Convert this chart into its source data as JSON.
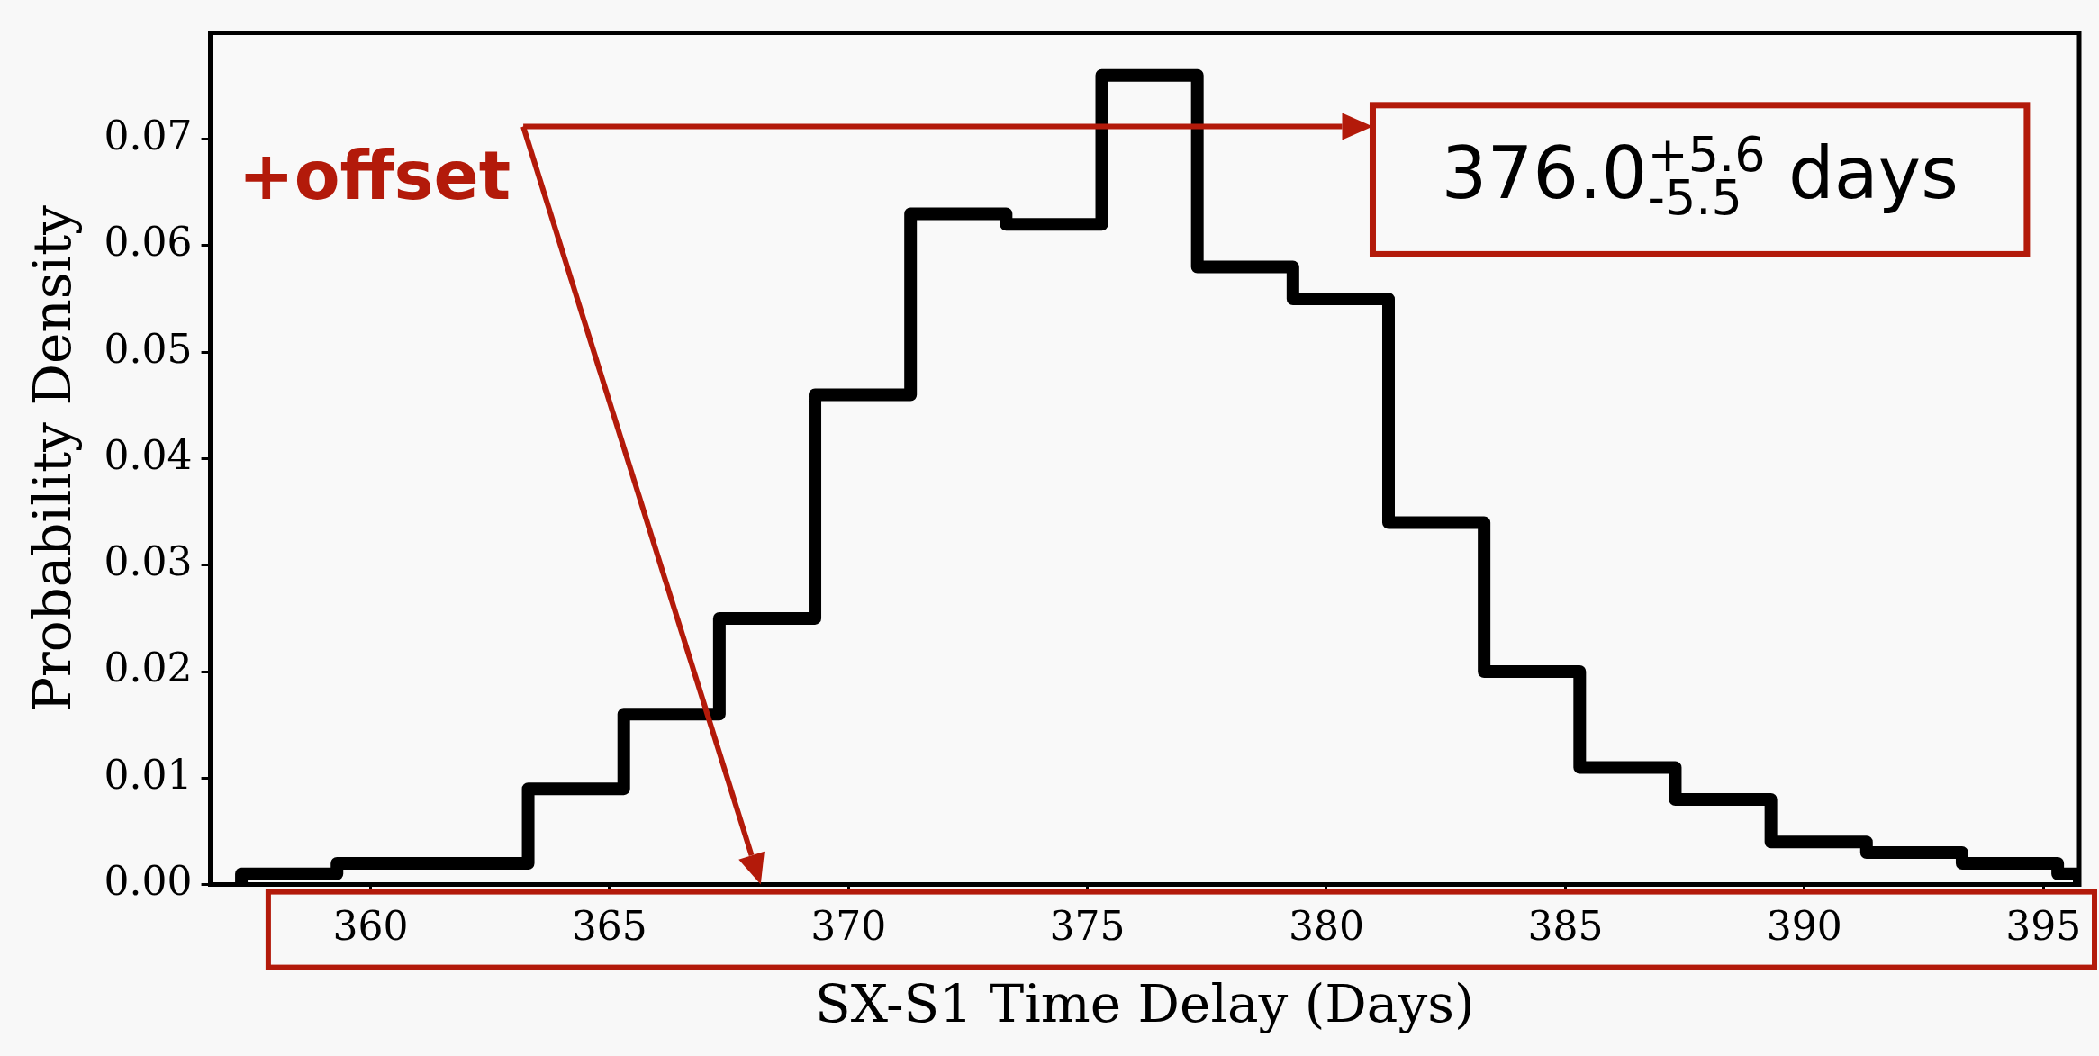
{
  "chart_data": {
    "type": "histogram",
    "xlabel": "SX-S1 Time Delay (Days)",
    "ylabel": "Probability Density",
    "bins": [
      357.3,
      359.3,
      361.3,
      363.3,
      365.3,
      367.3,
      369.3,
      371.3,
      373.3,
      375.3,
      377.3,
      379.3,
      381.3,
      383.3,
      385.3,
      387.3,
      389.3,
      391.3,
      393.3,
      395.3,
      395.75
    ],
    "values": [
      0.001,
      0.002,
      0.002,
      0.009,
      0.016,
      0.025,
      0.046,
      0.063,
      0.062,
      0.076,
      0.058,
      0.055,
      0.034,
      0.02,
      0.011,
      0.008,
      0.004,
      0.003,
      0.002,
      0.001
    ],
    "color": "#000000",
    "xlim": [
      356.65,
      395.75
    ],
    "xticks": [
      360,
      365,
      370,
      375,
      380,
      385,
      390,
      395
    ],
    "ylim": [
      0,
      0.08
    ],
    "yticks": [
      {
        "value": 0,
        "label": "0.00"
      },
      {
        "value": 0.01,
        "label": "0.01"
      },
      {
        "value": 0.02,
        "label": "0.02"
      },
      {
        "value": 0.03,
        "label": "0.03"
      },
      {
        "value": 0.04,
        "label": "0.04"
      },
      {
        "value": 0.05,
        "label": "0.05"
      },
      {
        "value": 0.06,
        "label": "0.06"
      },
      {
        "value": 0.07,
        "label": "0.07"
      }
    ],
    "annotations": [
      "+offset",
      "376.0$^{+5.6}$$_{-5.5}$ days"
    ]
  }
}
